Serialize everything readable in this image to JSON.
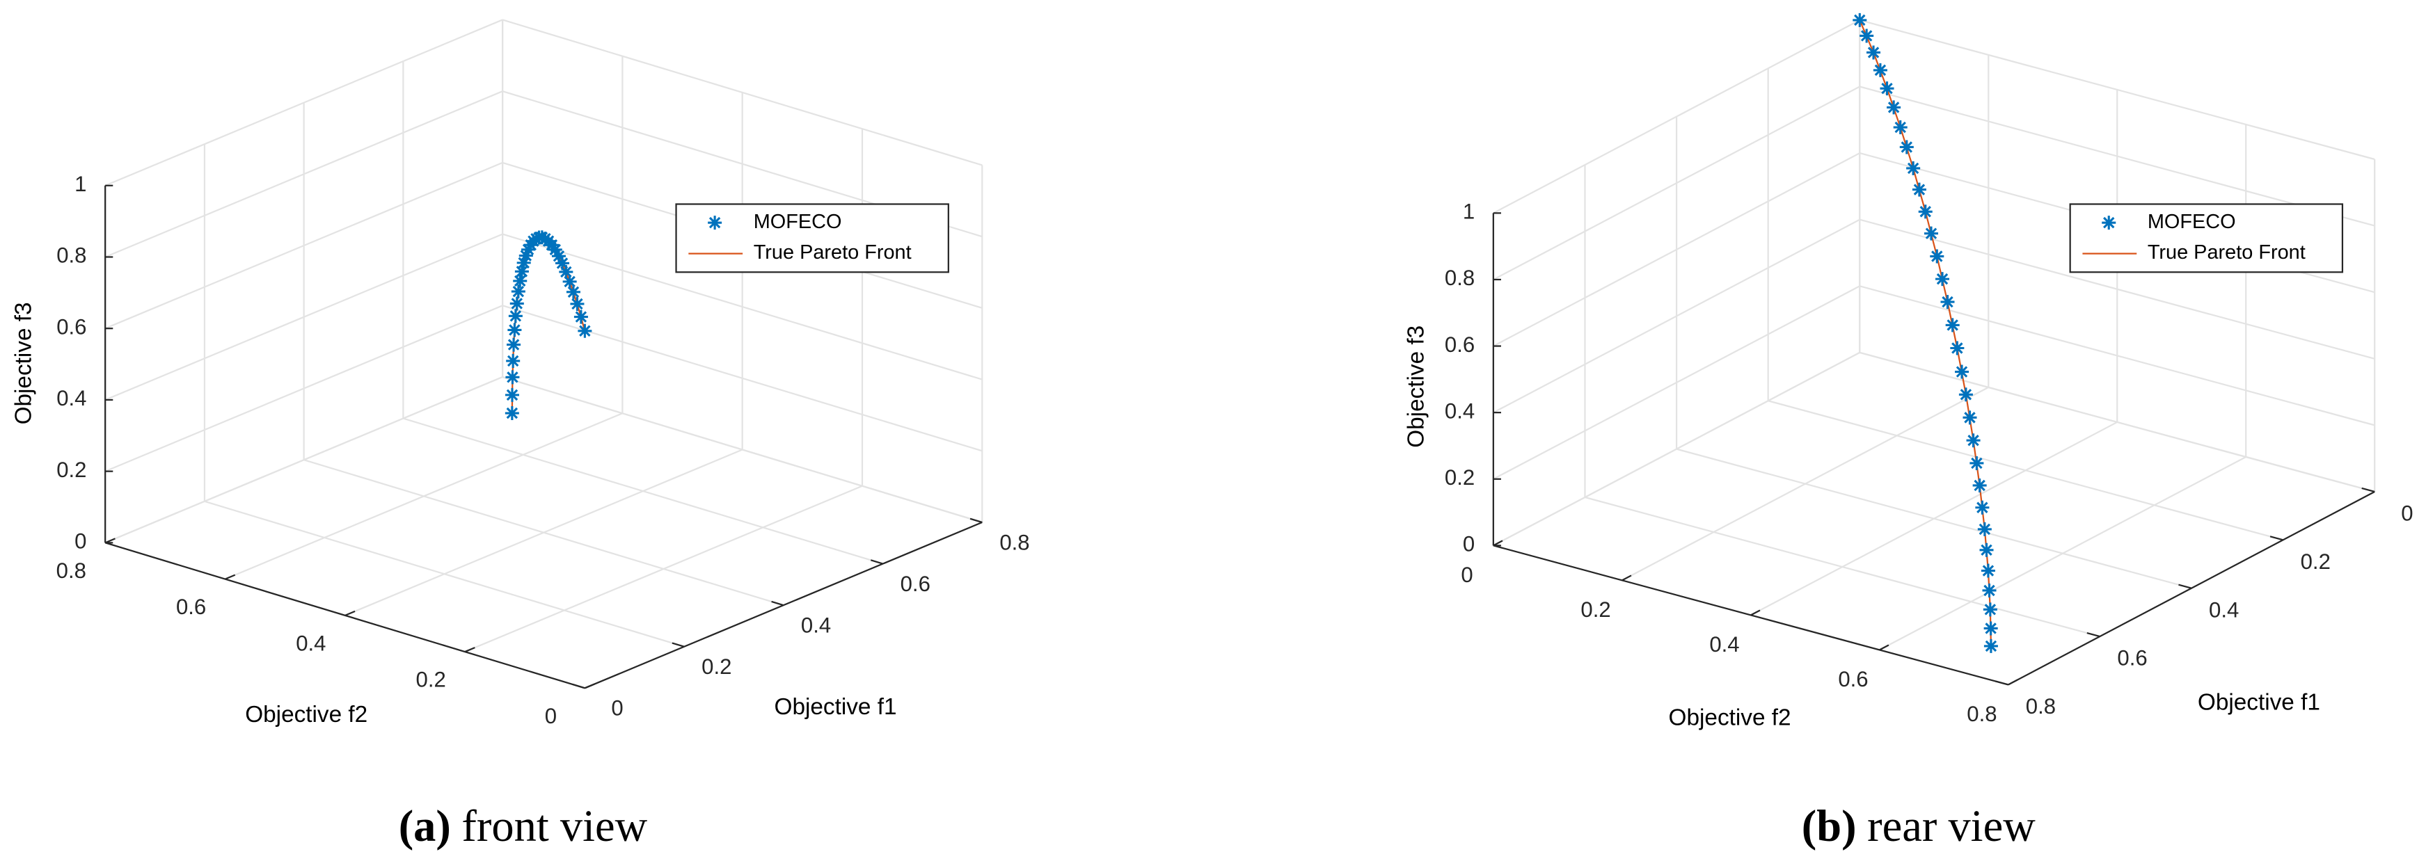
{
  "chart_data": [
    {
      "type": "scatter3d",
      "caption_label": "(a)",
      "caption": "front view",
      "xlabel": "Objective f1",
      "ylabel": "Objective f2",
      "zlabel": "Objective f3",
      "xlim": [
        0,
        0.8
      ],
      "ylim": [
        0,
        0.8
      ],
      "zlim": [
        0,
        1
      ],
      "xticks": [
        0,
        0.2,
        0.4,
        0.6,
        0.8
      ],
      "yticks": [
        0,
        0.2,
        0.4,
        0.6,
        0.8
      ],
      "zticks": [
        0,
        0.2,
        0.4,
        0.6,
        0.8,
        1
      ],
      "grid": true,
      "legend": "northeast",
      "series": [
        {
          "name": "MOFECO",
          "color": "#0072bd",
          "marker": "*",
          "x": [
            0.707,
            0.706,
            0.703,
            0.698,
            0.692,
            0.683,
            0.673,
            0.66,
            0.646,
            0.63,
            0.612,
            0.593,
            0.572,
            0.55,
            0.525,
            0.5,
            0.473,
            0.445,
            0.416,
            0.385,
            0.354,
            0.321,
            0.288,
            0.253,
            0.219,
            0.183,
            0.147,
            0.111,
            0.074,
            0.037,
            0
          ],
          "y": [
            0.707,
            0.706,
            0.703,
            0.698,
            0.692,
            0.683,
            0.673,
            0.66,
            0.646,
            0.63,
            0.612,
            0.593,
            0.572,
            0.55,
            0.525,
            0.5,
            0.473,
            0.445,
            0.416,
            0.385,
            0.354,
            0.321,
            0.288,
            0.253,
            0.219,
            0.183,
            0.147,
            0.111,
            0.074,
            0.037,
            0
          ],
          "z": [
            0,
            0.052,
            0.105,
            0.156,
            0.208,
            0.259,
            0.309,
            0.358,
            0.407,
            0.454,
            0.5,
            0.545,
            0.588,
            0.629,
            0.669,
            0.707,
            0.743,
            0.777,
            0.809,
            0.839,
            0.866,
            0.891,
            0.914,
            0.934,
            0.951,
            0.966,
            0.978,
            0.988,
            0.995,
            0.999,
            1
          ]
        },
        {
          "name": "True Pareto Front",
          "color": "#d95319",
          "marker": "line",
          "x": [
            0.707,
            0.703,
            0.692,
            0.673,
            0.646,
            0.612,
            0.572,
            0.525,
            0.473,
            0.416,
            0.354,
            0.288,
            0.219,
            0.147,
            0.074,
            0
          ],
          "y": [
            0.707,
            0.703,
            0.692,
            0.673,
            0.646,
            0.612,
            0.572,
            0.525,
            0.473,
            0.416,
            0.354,
            0.288,
            0.219,
            0.147,
            0.074,
            0
          ],
          "z": [
            0,
            0.105,
            0.208,
            0.309,
            0.407,
            0.5,
            0.588,
            0.669,
            0.743,
            0.809,
            0.866,
            0.914,
            0.951,
            0.978,
            0.995,
            1
          ]
        }
      ]
    },
    {
      "type": "scatter3d",
      "caption_label": "(b)",
      "caption": "rear view",
      "xlabel": "Objective f1",
      "ylabel": "Objective f2",
      "zlabel": "Objective f3",
      "xlim": [
        0,
        0.8
      ],
      "ylim": [
        0,
        0.8
      ],
      "zlim": [
        0,
        1
      ],
      "xticks": [
        0,
        0.2,
        0.4,
        0.6,
        0.8
      ],
      "yticks": [
        0,
        0.2,
        0.4,
        0.6,
        0.8
      ],
      "zticks": [
        0,
        0.2,
        0.4,
        0.6,
        0.8,
        1
      ],
      "grid": true,
      "legend": "northeast",
      "series": [
        {
          "name": "MOFECO",
          "color": "#0072bd",
          "marker": "*",
          "x": [
            0.707,
            0.706,
            0.703,
            0.698,
            0.692,
            0.683,
            0.673,
            0.66,
            0.646,
            0.63,
            0.612,
            0.593,
            0.572,
            0.55,
            0.525,
            0.5,
            0.473,
            0.445,
            0.416,
            0.385,
            0.354,
            0.321,
            0.288,
            0.253,
            0.219,
            0.183,
            0.147,
            0.111,
            0.074,
            0.037,
            0
          ],
          "y": [
            0.707,
            0.706,
            0.703,
            0.698,
            0.692,
            0.683,
            0.673,
            0.66,
            0.646,
            0.63,
            0.612,
            0.593,
            0.572,
            0.55,
            0.525,
            0.5,
            0.473,
            0.445,
            0.416,
            0.385,
            0.354,
            0.321,
            0.288,
            0.253,
            0.219,
            0.183,
            0.147,
            0.111,
            0.074,
            0.037,
            0
          ],
          "z": [
            0,
            0.052,
            0.105,
            0.156,
            0.208,
            0.259,
            0.309,
            0.358,
            0.407,
            0.454,
            0.5,
            0.545,
            0.588,
            0.629,
            0.669,
            0.707,
            0.743,
            0.777,
            0.809,
            0.839,
            0.866,
            0.891,
            0.914,
            0.934,
            0.951,
            0.966,
            0.978,
            0.988,
            0.995,
            0.999,
            1
          ]
        },
        {
          "name": "True Pareto Front",
          "color": "#d95319",
          "marker": "line",
          "x": [
            0.707,
            0.703,
            0.692,
            0.673,
            0.646,
            0.612,
            0.572,
            0.525,
            0.473,
            0.416,
            0.354,
            0.288,
            0.219,
            0.147,
            0.074,
            0
          ],
          "y": [
            0.707,
            0.703,
            0.692,
            0.673,
            0.646,
            0.612,
            0.572,
            0.525,
            0.473,
            0.416,
            0.354,
            0.288,
            0.219,
            0.147,
            0.074,
            0
          ],
          "z": [
            0,
            0.105,
            0.208,
            0.309,
            0.407,
            0.5,
            0.588,
            0.669,
            0.743,
            0.809,
            0.866,
            0.914,
            0.951,
            0.978,
            0.995,
            1
          ]
        }
      ]
    }
  ]
}
